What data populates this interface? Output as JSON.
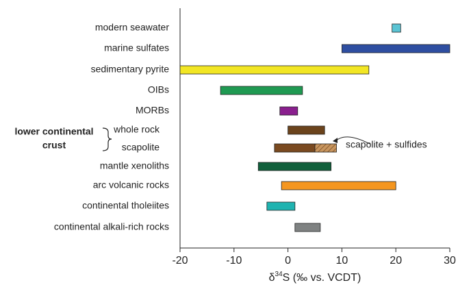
{
  "chart_data": {
    "type": "range-bar",
    "categories": [
      "modern seawater",
      "marine sulfates",
      "sedimentary pyrite",
      "OIBs",
      "MORBs",
      "whole rock",
      "scapolite",
      "mantle xenoliths",
      "arc volcanic rocks",
      "continental tholeiites",
      "continental alkali-rich rocks"
    ],
    "low": [
      19.3,
      10,
      -20,
      -12.5,
      -1.5,
      0,
      -2.5,
      -5.5,
      -1.2,
      -3.9,
      1.3
    ],
    "high": [
      20.9,
      30,
      15,
      2.7,
      1.8,
      6.8,
      5,
      8,
      20,
      1.3,
      6
    ],
    "colors": [
      "#5bc4d4",
      "#2e4ea1",
      "#f2e624",
      "#1f9a52",
      "#8a1f8e",
      "#6b431c",
      "#7a4a20",
      "#11603c",
      "#f5961f",
      "#1fb3b0",
      "#7f8282"
    ],
    "extra_segments": [
      {
        "name": "scapolite + sulfides",
        "category": "scapolite",
        "low": 5,
        "high": 9,
        "color": "#c8955e"
      }
    ],
    "group": {
      "label": [
        "lower continental",
        "crust"
      ],
      "categories": [
        "whole rock",
        "scapolite"
      ]
    },
    "xlabel": [
      "δ",
      "34",
      "S (‰ vs. VCDT)"
    ],
    "xlim": [
      -20,
      30
    ],
    "xticks": [
      -20,
      -10,
      0,
      10,
      20,
      30
    ]
  }
}
